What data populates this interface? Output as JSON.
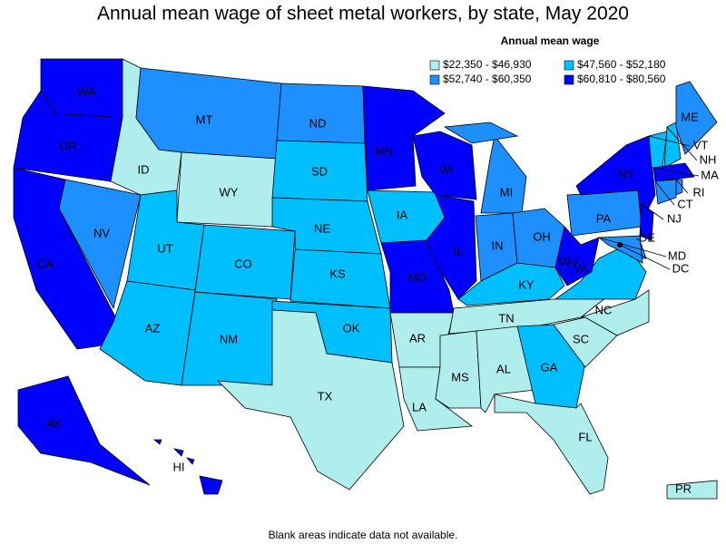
{
  "title": "Annual mean wage of sheet metal workers, by state, May 2020",
  "legend": {
    "title": "Annual mean wage",
    "items": [
      {
        "label": "$22,350 - $46,930",
        "color": "#b0eeee"
      },
      {
        "label": "$47,560 - $52,180",
        "color": "#00bfff"
      },
      {
        "label": "$52,740 - $60,350",
        "color": "#1e8fff"
      },
      {
        "label": "$60,810 - $80,560",
        "color": "#0000ff"
      }
    ]
  },
  "states": [
    {
      "label": "WA",
      "color": "#0000ff"
    },
    {
      "label": "OR",
      "color": "#0000ff"
    },
    {
      "label": "CA",
      "color": "#0000ff"
    },
    {
      "label": "NV",
      "color": "#1e8fff"
    },
    {
      "label": "ID",
      "color": "#b0eeee"
    },
    {
      "label": "MT",
      "color": "#1e8fff"
    },
    {
      "label": "WY",
      "color": "#b0eeee"
    },
    {
      "label": "UT",
      "color": "#00bfff"
    },
    {
      "label": "CO",
      "color": "#00bfff"
    },
    {
      "label": "AZ",
      "color": "#00bfff"
    },
    {
      "label": "NM",
      "color": "#00bfff"
    },
    {
      "label": "ND",
      "color": "#1e8fff"
    },
    {
      "label": "SD",
      "color": "#00bfff"
    },
    {
      "label": "NE",
      "color": "#00bfff"
    },
    {
      "label": "KS",
      "color": "#00bfff"
    },
    {
      "label": "OK",
      "color": "#00bfff"
    },
    {
      "label": "TX",
      "color": "#b0eeee"
    },
    {
      "label": "MN",
      "color": "#0000ff"
    },
    {
      "label": "IA",
      "color": "#00bfff"
    },
    {
      "label": "MO",
      "color": "#0000ff"
    },
    {
      "label": "AR",
      "color": "#b0eeee"
    },
    {
      "label": "LA",
      "color": "#b0eeee"
    },
    {
      "label": "WI",
      "color": "#0000ff"
    },
    {
      "label": "IL",
      "color": "#0000ff"
    },
    {
      "label": "MI",
      "color": "#1e8fff"
    },
    {
      "label": "IN",
      "color": "#1e8fff"
    },
    {
      "label": "OH",
      "color": "#1e8fff"
    },
    {
      "label": "KY",
      "color": "#00bfff"
    },
    {
      "label": "TN",
      "color": "#b0eeee"
    },
    {
      "label": "MS",
      "color": "#b0eeee"
    },
    {
      "label": "AL",
      "color": "#b0eeee"
    },
    {
      "label": "GA",
      "color": "#00bfff"
    },
    {
      "label": "FL",
      "color": "#b0eeee"
    },
    {
      "label": "SC",
      "color": "#b0eeee"
    },
    {
      "label": "NC",
      "color": "#b0eeee"
    },
    {
      "label": "VA",
      "color": "#00bfff"
    },
    {
      "label": "WV",
      "color": "#0000ff"
    },
    {
      "label": "PA",
      "color": "#1e8fff"
    },
    {
      "label": "NY",
      "color": "#0000ff"
    },
    {
      "label": "NJ",
      "color": "#0000ff"
    },
    {
      "label": "DE",
      "color": "#1e8fff"
    },
    {
      "label": "MD",
      "color": "#1e8fff"
    },
    {
      "label": "DC",
      "color": "#000000"
    },
    {
      "label": "VT",
      "color": "#00bfff"
    },
    {
      "label": "NH",
      "color": "#00bfff"
    },
    {
      "label": "MA",
      "color": "#0000ff"
    },
    {
      "label": "RI",
      "color": "#1e8fff"
    },
    {
      "label": "CT",
      "color": "#1e8fff"
    },
    {
      "label": "ME",
      "color": "#1e8fff"
    },
    {
      "label": "AK",
      "color": "#0000ff"
    },
    {
      "label": "HI",
      "color": "#0000ff"
    },
    {
      "label": "PR",
      "color": "#b0eeee"
    }
  ],
  "footnote": "Blank areas indicate data not available."
}
